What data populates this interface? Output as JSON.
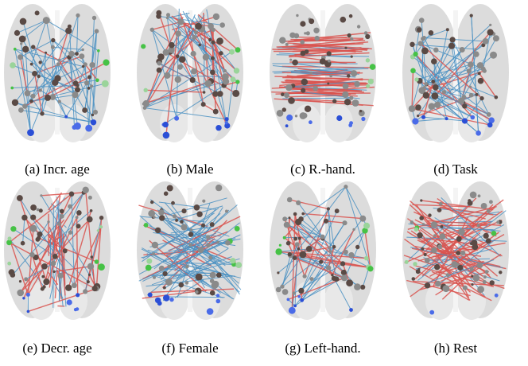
{
  "panels": [
    {
      "caption": "(a) Incr. age"
    },
    {
      "caption": "(b) Male"
    },
    {
      "caption": "(c) R.-hand."
    },
    {
      "caption": "(d) Task"
    },
    {
      "caption": "(e) Decr. age"
    },
    {
      "caption": "(f) Female"
    },
    {
      "caption": "(g) Left-hand."
    },
    {
      "caption": "(h) Rest"
    }
  ]
}
